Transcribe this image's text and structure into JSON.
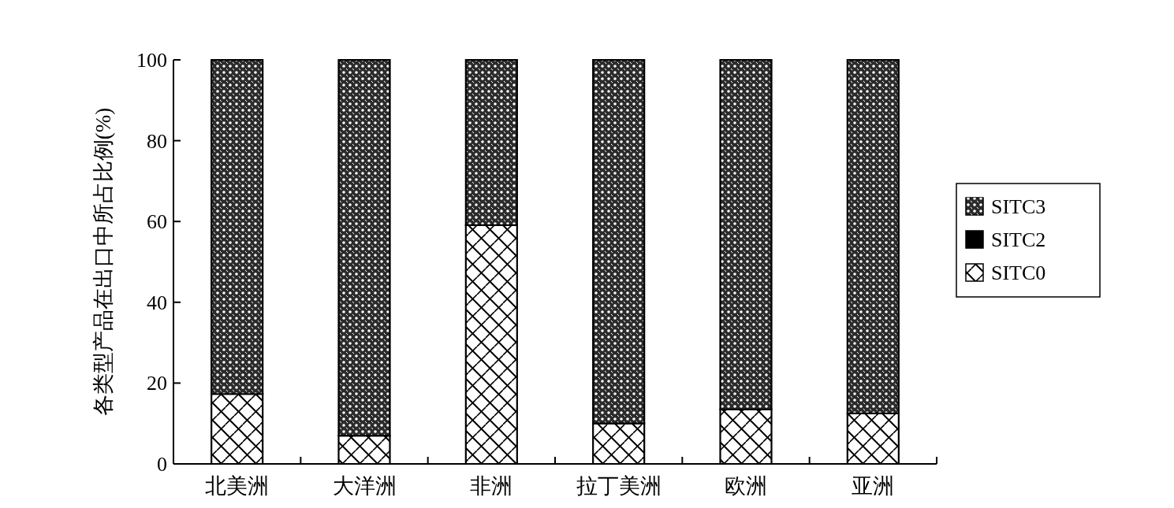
{
  "chart_data": {
    "type": "bar",
    "ylabel": "各类型产品在出口中所占比例(%)",
    "categories": [
      "北美洲",
      "大洋洲",
      "非洲",
      "拉丁美洲",
      "欧洲",
      "亚洲"
    ],
    "stacked": true,
    "series": [
      {
        "name": "SITC0",
        "color": "#ffffff",
        "values": [
          17.3,
          7.0,
          59.1,
          10.0,
          13.5,
          12.5
        ]
      },
      {
        "name": "SITC2",
        "color": "#000000",
        "values": [
          0,
          0,
          0,
          0,
          0,
          0
        ]
      },
      {
        "name": "SITC3",
        "color": "#2b2b2b",
        "values": [
          82.7,
          93.0,
          40.9,
          90.0,
          86.5,
          87.5
        ]
      }
    ],
    "ylim": [
      0,
      100
    ],
    "yticks": [
      0,
      20,
      40,
      60,
      80,
      100
    ],
    "legend": "right"
  }
}
